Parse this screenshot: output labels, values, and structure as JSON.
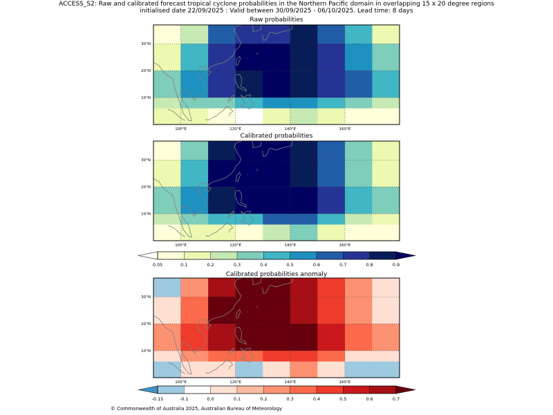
{
  "header": {
    "line1": "ACCESS_S2: Raw and calibrated forecast tropical cyclone probabilities in the Northern Pacific domain in overlapping 15 x 20 degree regions",
    "line2": "initialised date 22/09/2025 :  Valid between 30/09/2025 - 06/10/2025. Lead time: 8 days"
  },
  "footer": {
    "copyright": "© Commonwealth of Australia 2025, Australian Bureau of Meteorology"
  },
  "axes": {
    "lon_ticks": [
      "100°E",
      "120°E",
      "140°E",
      "160°E"
    ],
    "lat_ticks": [
      "30°N",
      "20°N",
      "10°N"
    ]
  },
  "colors": {
    "prob": [
      "#ffffd9",
      "#edf8b1",
      "#c7e9b4",
      "#7fcdbb",
      "#41b6c4",
      "#1d91c0",
      "#225ea8",
      "#253494",
      "#081d58",
      "#000060"
    ],
    "prob_over": "#000060",
    "prob_under": "#ffffff",
    "anom": [
      "#4393c3",
      "#9ecae1",
      "#ffffff",
      "#fee0d2",
      "#fcbba1",
      "#fc9272",
      "#fb6a4a",
      "#ef3b2c",
      "#cb181d",
      "#a50f15",
      "#67000d"
    ],
    "coast": "#808080"
  },
  "chart_data": [
    {
      "type": "heatmap",
      "title": "Raw probabilities",
      "x_labels": [
        "100°E",
        "120°E",
        "140°E",
        "160°E"
      ],
      "y_labels": [
        "30°N",
        "20°N",
        "10°N"
      ],
      "cell_values": [
        [
          0.08,
          0.25,
          0.65,
          0.75,
          0.75,
          0.8,
          0.65,
          0.45,
          0.15
        ],
        [
          0.15,
          0.45,
          0.75,
          0.95,
          0.95,
          0.8,
          0.75,
          0.55,
          0.35
        ],
        [
          0.35,
          0.55,
          0.75,
          0.85,
          0.95,
          0.85,
          0.75,
          0.65,
          0.45
        ],
        [
          0.25,
          0.35,
          0.35,
          0.45,
          0.55,
          0.55,
          0.45,
          0.35,
          0.25
        ],
        [
          0.15,
          0.15,
          0.08,
          0.02,
          0.15,
          0.25,
          0.15,
          0.08,
          0.08
        ]
      ]
    },
    {
      "type": "heatmap",
      "title": "Calibrated probabilities",
      "x_labels": [
        "100°E",
        "120°E",
        "140°E",
        "160°E"
      ],
      "y_labels": [
        "30°N",
        "20°N",
        "10°N"
      ],
      "cell_values": [
        [
          0.08,
          0.35,
          0.85,
          0.95,
          0.95,
          0.85,
          0.65,
          0.35,
          0.15
        ],
        [
          0.15,
          0.45,
          0.95,
          0.95,
          0.95,
          0.85,
          0.65,
          0.35,
          0.15
        ],
        [
          0.35,
          0.55,
          0.85,
          0.95,
          0.95,
          0.95,
          0.75,
          0.45,
          0.35
        ],
        [
          0.25,
          0.35,
          0.45,
          0.45,
          0.65,
          0.65,
          0.45,
          0.25,
          0.15
        ],
        [
          0.08,
          0.15,
          0.15,
          0.08,
          0.25,
          0.35,
          0.15,
          0.08,
          0.08
        ]
      ]
    },
    {
      "type": "heatmap",
      "title": "Calibrated probabilities anomaly",
      "x_labels": [
        "100°E",
        "120°E",
        "140°E",
        "160°E"
      ],
      "y_labels": [
        "30°N",
        "20°N",
        "10°N"
      ],
      "cell_values": [
        [
          -0.12,
          0.22,
          0.65,
          0.75,
          0.75,
          0.65,
          0.45,
          0.22,
          0.0
        ],
        [
          0.0,
          0.35,
          0.75,
          0.75,
          0.75,
          0.65,
          0.45,
          0.22,
          0.0
        ],
        [
          0.22,
          0.45,
          0.65,
          0.75,
          0.75,
          0.75,
          0.55,
          0.35,
          0.22
        ],
        [
          0.05,
          0.22,
          0.35,
          0.35,
          0.45,
          0.45,
          0.35,
          0.05,
          0.0
        ],
        [
          -0.12,
          0.05,
          0.05,
          -0.12,
          0.05,
          0.22,
          0.0,
          -0.12,
          -0.12
        ]
      ]
    }
  ],
  "colorbars": [
    {
      "name": "prob-colorbar",
      "ticks": [
        "0.05",
        "0.1",
        "0.2",
        "0.3",
        "0.4",
        "0.5",
        "0.6",
        "0.7",
        "0.8",
        "0.9"
      ]
    },
    {
      "name": "anom-colorbar",
      "ticks": [
        "-0.15",
        "-0.1",
        "0.0",
        "0.1",
        "0.2",
        "0.3",
        "0.4",
        "0.5",
        "0.6",
        "0.7"
      ]
    }
  ]
}
